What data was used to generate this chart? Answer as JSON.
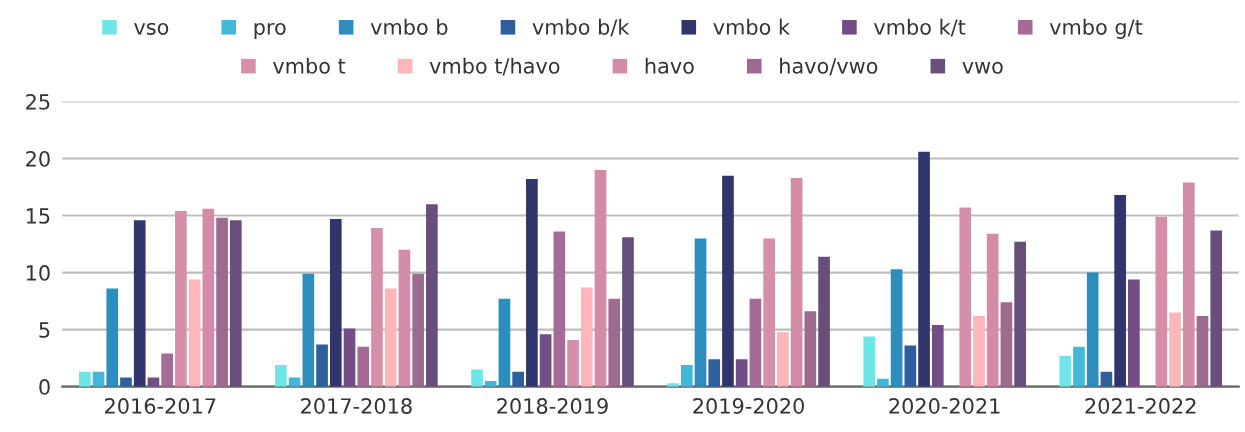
{
  "chart_data": {
    "type": "bar",
    "categories": [
      "2016-2017",
      "2017-2018",
      "2018-2019",
      "2019-2020",
      "2020-2021",
      "2021-2022"
    ],
    "series": [
      {
        "name": "vso",
        "color": "#6ee6e8",
        "values": [
          1.3,
          1.9,
          1.5,
          0.3,
          4.4,
          2.7
        ]
      },
      {
        "name": "pro",
        "color": "#42b8d8",
        "values": [
          1.3,
          0.8,
          0.5,
          1.9,
          0.7,
          3.5
        ]
      },
      {
        "name": "vmbo b",
        "color": "#2d8dbc",
        "values": [
          8.6,
          9.9,
          7.7,
          13.0,
          10.3,
          10.0
        ]
      },
      {
        "name": "vmbo b/k",
        "color": "#2e5f9a",
        "values": [
          0.8,
          3.7,
          1.3,
          2.4,
          3.6,
          1.3
        ]
      },
      {
        "name": "vmbo k",
        "color": "#31356e",
        "values": [
          14.6,
          14.7,
          18.2,
          18.5,
          20.6,
          16.8
        ]
      },
      {
        "name": "vmbo k/t",
        "color": "#734d87",
        "values": [
          0.8,
          5.1,
          4.6,
          2.4,
          5.4,
          9.4
        ]
      },
      {
        "name": "vmbo g/t",
        "color": "#a56b96",
        "values": [
          2.9,
          3.5,
          13.6,
          7.7,
          null,
          null
        ]
      },
      {
        "name": "vmbo t",
        "color": "#d58fa8",
        "values": [
          15.4,
          13.9,
          4.1,
          13.0,
          15.7,
          14.9
        ]
      },
      {
        "name": "vmbo t/havo",
        "color": "#feb6bb",
        "values": [
          9.4,
          8.6,
          8.7,
          4.8,
          6.2,
          6.5
        ]
      },
      {
        "name": "havo",
        "color": "#d38ca7",
        "values": [
          15.6,
          12.0,
          19.0,
          18.3,
          13.4,
          17.9
        ]
      },
      {
        "name": "havo/vwo",
        "color": "#9d6b8f",
        "values": [
          14.8,
          9.9,
          7.7,
          6.6,
          7.4,
          6.2
        ]
      },
      {
        "name": "vwo",
        "color": "#684e7a",
        "values": [
          14.6,
          16.0,
          13.1,
          11.4,
          12.7,
          13.7
        ]
      }
    ],
    "ylim": [
      0,
      25
    ],
    "yticks": [
      0,
      5,
      10,
      15,
      20,
      25
    ],
    "grid": "y",
    "legend": "top"
  }
}
